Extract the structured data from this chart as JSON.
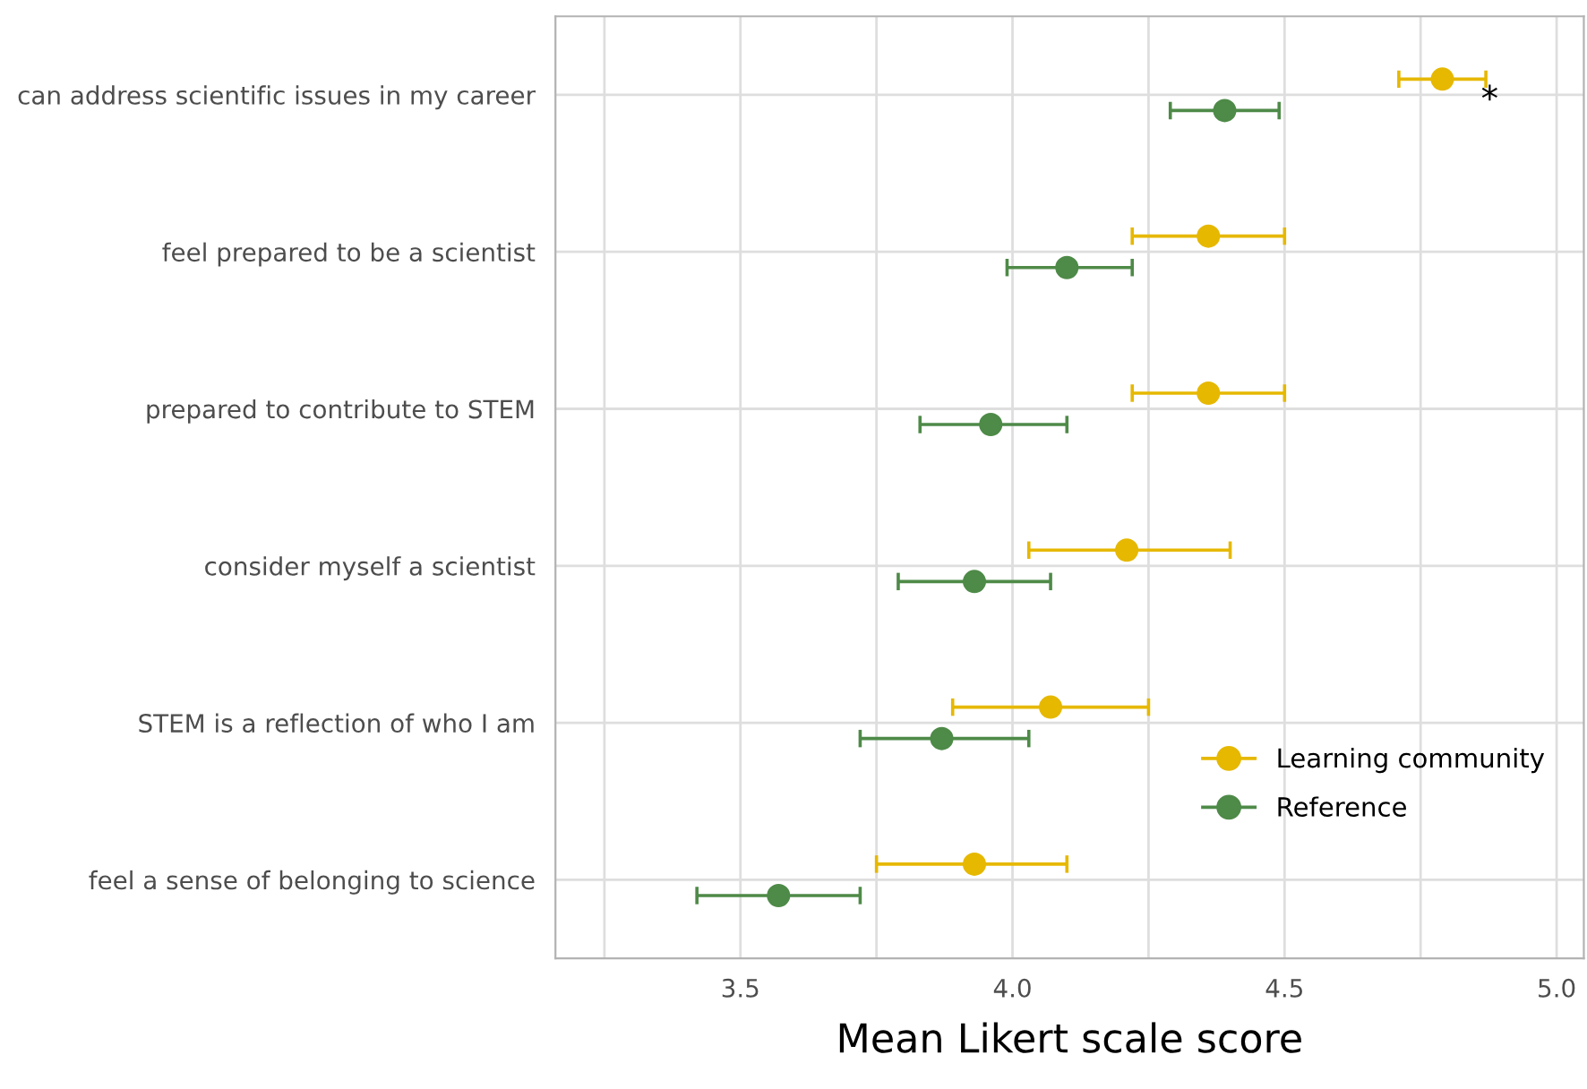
{
  "chart_data": {
    "type": "scatter",
    "orientation": "horizontal",
    "xlabel": "Mean Likert scale score",
    "categories": [
      "can address scientific issues in my career",
      "feel prepared to be a scientist",
      "prepared to contribute to STEM",
      "consider myself a scientist",
      "STEM is a reflection of who I am",
      "feel a sense of belonging to science"
    ],
    "series": [
      {
        "name": "Learning community",
        "color": "#e6b800",
        "values": [
          4.79,
          4.36,
          4.36,
          4.21,
          4.07,
          3.93
        ],
        "errors": [
          [
            4.71,
            4.87
          ],
          [
            4.22,
            4.5
          ],
          [
            4.22,
            4.5
          ],
          [
            4.03,
            4.4
          ],
          [
            3.89,
            4.25
          ],
          [
            3.75,
            4.1
          ]
        ]
      },
      {
        "name": "Reference",
        "color": "#4e8a48",
        "values": [
          4.39,
          4.1,
          3.96,
          3.93,
          3.87,
          3.57
        ],
        "errors": [
          [
            4.29,
            4.49
          ],
          [
            3.99,
            4.22
          ],
          [
            3.83,
            4.1
          ],
          [
            3.79,
            4.07
          ],
          [
            3.72,
            4.03
          ],
          [
            3.42,
            3.72
          ]
        ]
      }
    ],
    "xlim": [
      3.16,
      5.05
    ],
    "xticks": [
      {
        "value": 3.25,
        "label": null
      },
      3.5,
      {
        "value": 3.75,
        "label": null
      },
      {
        "value": 4,
        "label": "4.0"
      },
      {
        "value": 4.25,
        "label": null
      },
      4.5,
      {
        "value": 4.75,
        "label": null
      },
      {
        "value": 5,
        "label": "5.0"
      }
    ],
    "annotations": [
      "*"
    ],
    "grid": true,
    "legend": "bottom right",
    "marker": "circle"
  }
}
